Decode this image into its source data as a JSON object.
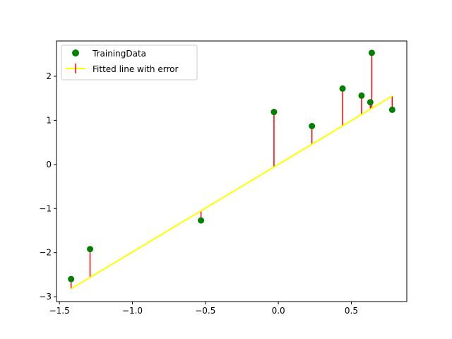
{
  "chart_data": {
    "type": "scatter",
    "title": "",
    "xlabel": "",
    "ylabel": "",
    "xlim": [
      -1.52,
      0.88
    ],
    "ylim": [
      -3.11,
      2.8
    ],
    "xticks": [
      -1.5,
      -1.0,
      -0.5,
      0.0,
      0.5
    ],
    "xtick_labels": [
      "−1.5",
      "−1.0",
      "−0.5",
      "0.0",
      "0.5"
    ],
    "yticks": [
      -3,
      -2,
      -1,
      0,
      1,
      2
    ],
    "ytick_labels": [
      "−3",
      "−2",
      "−1",
      "0",
      "1",
      "2"
    ],
    "grid": false,
    "legend_position": "top-left",
    "series": [
      {
        "name": "TrainingData",
        "kind": "points",
        "color": "#008000",
        "x": [
          -1.42,
          -1.29,
          -0.53,
          -0.03,
          0.23,
          0.44,
          0.57,
          0.63,
          0.64,
          0.78
        ],
        "y": [
          -2.6,
          -1.92,
          -1.27,
          1.19,
          0.87,
          1.72,
          1.56,
          1.41,
          2.53,
          1.24
        ]
      },
      {
        "name": "Fitted line with error",
        "kind": "line",
        "color": "#ffff00",
        "error_color": "#ff0000",
        "x": [
          -1.42,
          0.78
        ],
        "y": [
          -2.82,
          1.55
        ]
      }
    ]
  }
}
